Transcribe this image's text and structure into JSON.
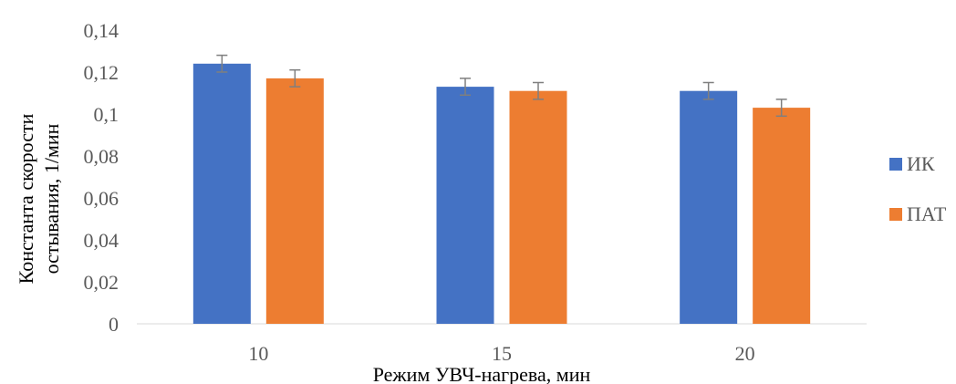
{
  "chart_data": {
    "type": "bar",
    "title": "",
    "xlabel": "Режим УВЧ-нагрева, мин",
    "ylabel_lines": [
      "Константа скорости",
      "остывания, 1/мин"
    ],
    "categories": [
      "10",
      "15",
      "20"
    ],
    "ylim": [
      0,
      0.14
    ],
    "yticks": [
      0,
      0.02,
      0.04,
      0.06,
      0.08,
      0.1,
      0.12,
      0.14
    ],
    "ytick_labels": [
      "0",
      "0,02",
      "0,04",
      "0,06",
      "0,08",
      "0,1",
      "0,12",
      "0,14"
    ],
    "grid": false,
    "legend_position": "right",
    "series": [
      {
        "name": "ИК",
        "color": "#4472c4",
        "values": [
          0.124,
          0.113,
          0.111
        ],
        "errors": [
          0.004,
          0.004,
          0.004
        ]
      },
      {
        "name": "ПАТ",
        "color": "#ed7d31",
        "values": [
          0.117,
          0.111,
          0.103
        ],
        "errors": [
          0.004,
          0.004,
          0.004
        ]
      }
    ]
  }
}
